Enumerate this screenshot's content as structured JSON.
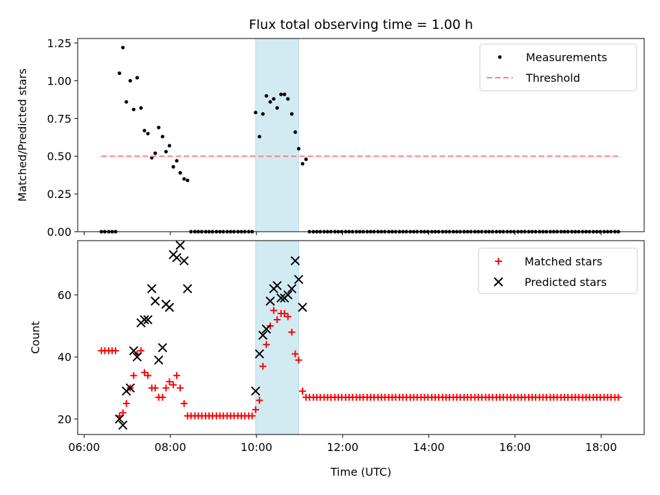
{
  "chart_data": {
    "type": "scatter",
    "title": "Flux total observing time = 1.00 h",
    "xlabel": "Time (UTC)",
    "x_unit": "hours UTC",
    "x_ticks": [
      {
        "value": 6,
        "label": "06:00"
      },
      {
        "value": 8,
        "label": "08:00"
      },
      {
        "value": 10,
        "label": "10:00"
      },
      {
        "value": 12,
        "label": "12:00"
      },
      {
        "value": 14,
        "label": "14:00"
      },
      {
        "value": 16,
        "label": "16:00"
      },
      {
        "value": 18,
        "label": "18:00"
      }
    ],
    "xlim": [
      5.85,
      19.0
    ],
    "shaded_span": {
      "from": 9.98,
      "to": 10.98,
      "color": "#add8e6"
    },
    "panels": [
      {
        "ylabel": "Matched/Predicted stars",
        "ylim": [
          0,
          1.28
        ],
        "y_ticks": [
          {
            "value": 0.0,
            "label": "0.00"
          },
          {
            "value": 0.25,
            "label": "0.25"
          },
          {
            "value": 0.5,
            "label": "0.50"
          },
          {
            "value": 0.75,
            "label": "0.75"
          },
          {
            "value": 1.0,
            "label": "1.00"
          },
          {
            "value": 1.25,
            "label": "1.25"
          }
        ],
        "legend_position": "top-right",
        "series": [
          {
            "name": "Measurements",
            "marker": "dot",
            "color": "#000000",
            "x": [
              6.4,
              6.48,
              6.57,
              6.65,
              6.73,
              6.82,
              6.9,
              6.98,
              7.07,
              7.15,
              7.23,
              7.32,
              7.4,
              7.48,
              7.57,
              7.65,
              7.73,
              7.82,
              7.9,
              7.98,
              8.07,
              8.15,
              8.23,
              8.32,
              8.4,
              8.48,
              8.57,
              8.65,
              8.73,
              8.82,
              8.9,
              8.98,
              9.07,
              9.15,
              9.23,
              9.32,
              9.4,
              9.48,
              9.57,
              9.65,
              9.73,
              9.82,
              9.9,
              9.98,
              10.07,
              10.15,
              10.23,
              10.32,
              10.4,
              10.48,
              10.57,
              10.65,
              10.73,
              10.82,
              10.9,
              10.98,
              11.07,
              11.15,
              11.23,
              11.32,
              11.4,
              11.48,
              11.57,
              11.65,
              11.73,
              11.82,
              11.9,
              11.98,
              12.07,
              12.15,
              12.23,
              12.32,
              12.4,
              12.48,
              12.57,
              12.65,
              12.73,
              12.82,
              12.9,
              12.98,
              13.07,
              13.15,
              13.23,
              13.32,
              13.4,
              13.48,
              13.57,
              13.65,
              13.73,
              13.82,
              13.9,
              13.98,
              14.07,
              14.15,
              14.23,
              14.32,
              14.4,
              14.48,
              14.57,
              14.65,
              14.73,
              14.82,
              14.9,
              14.98,
              15.07,
              15.15,
              15.23,
              15.32,
              15.4,
              15.48,
              15.57,
              15.65,
              15.73,
              15.82,
              15.9,
              15.98,
              16.07,
              16.15,
              16.23,
              16.32,
              16.4,
              16.48,
              16.57,
              16.65,
              16.73,
              16.82,
              16.9,
              16.98,
              17.07,
              17.15,
              17.23,
              17.32,
              17.4,
              17.48,
              17.57,
              17.65,
              17.73,
              17.82,
              17.9,
              17.98,
              18.07,
              18.15,
              18.23,
              18.32,
              18.4
            ],
            "y": [
              0.0,
              0.0,
              0.0,
              0.0,
              0.0,
              1.05,
              1.22,
              0.86,
              1.0,
              0.81,
              1.02,
              0.82,
              0.67,
              0.65,
              0.49,
              0.52,
              0.69,
              0.63,
              0.53,
              0.57,
              0.43,
              0.47,
              0.39,
              0.35,
              0.34,
              0.0,
              0.0,
              0.0,
              0.0,
              0.0,
              0.0,
              0.0,
              0.0,
              0.0,
              0.0,
              0.0,
              0.0,
              0.0,
              0.0,
              0.0,
              0.0,
              0.0,
              0.0,
              0.79,
              0.63,
              0.78,
              0.9,
              0.86,
              0.88,
              0.82,
              0.91,
              0.91,
              0.88,
              0.78,
              0.66,
              0.55,
              0.45,
              0.48,
              0.0,
              0.0,
              0.0,
              0.0,
              0.0,
              0.0,
              0.0,
              0.0,
              0.0,
              0.0,
              0.0,
              0.0,
              0.0,
              0.0,
              0.0,
              0.0,
              0.0,
              0.0,
              0.0,
              0.0,
              0.0,
              0.0,
              0.0,
              0.0,
              0.0,
              0.0,
              0.0,
              0.0,
              0.0,
              0.0,
              0.0,
              0.0,
              0.0,
              0.0,
              0.0,
              0.0,
              0.0,
              0.0,
              0.0,
              0.0,
              0.0,
              0.0,
              0.0,
              0.0,
              0.0,
              0.0,
              0.0,
              0.0,
              0.0,
              0.0,
              0.0,
              0.0,
              0.0,
              0.0,
              0.0,
              0.0,
              0.0,
              0.0,
              0.0,
              0.0,
              0.0,
              0.0,
              0.0,
              0.0,
              0.0,
              0.0,
              0.0,
              0.0,
              0.0,
              0.0,
              0.0,
              0.0,
              0.0,
              0.0,
              0.0,
              0.0,
              0.0,
              0.0,
              0.0,
              0.0,
              0.0,
              0.0,
              0.0,
              0.0,
              0.0,
              0.0,
              0.0
            ]
          },
          {
            "name": "Threshold",
            "marker": "dashed-line",
            "color": "#ff7f7f",
            "x": [
              6.4,
              18.4
            ],
            "y": [
              0.5,
              0.5
            ]
          }
        ]
      },
      {
        "ylabel": "Count",
        "ylim": [
          15,
          77.5
        ],
        "y_ticks": [
          {
            "value": 20,
            "label": "20"
          },
          {
            "value": 40,
            "label": "40"
          },
          {
            "value": 60,
            "label": "60"
          }
        ],
        "legend_position": "top-right",
        "series": [
          {
            "name": "Matched stars",
            "marker": "plus",
            "color": "#ff0000",
            "x": [
              6.4,
              6.48,
              6.57,
              6.65,
              6.73,
              6.82,
              6.9,
              6.98,
              7.07,
              7.15,
              7.23,
              7.32,
              7.4,
              7.48,
              7.57,
              7.65,
              7.73,
              7.82,
              7.9,
              7.98,
              8.07,
              8.15,
              8.23,
              8.32,
              8.4,
              8.48,
              8.57,
              8.65,
              8.73,
              8.82,
              8.9,
              8.98,
              9.07,
              9.15,
              9.23,
              9.32,
              9.4,
              9.48,
              9.57,
              9.65,
              9.73,
              9.82,
              9.9,
              9.98,
              10.07,
              10.15,
              10.23,
              10.32,
              10.4,
              10.48,
              10.57,
              10.65,
              10.73,
              10.82,
              10.9,
              10.98,
              11.07,
              11.15,
              11.23,
              11.32,
              11.4,
              11.48,
              11.57,
              11.65,
              11.73,
              11.82,
              11.9,
              11.98,
              12.07,
              12.15,
              12.23,
              12.32,
              12.4,
              12.48,
              12.57,
              12.65,
              12.73,
              12.82,
              12.9,
              12.98,
              13.07,
              13.15,
              13.23,
              13.32,
              13.4,
              13.48,
              13.57,
              13.65,
              13.73,
              13.82,
              13.9,
              13.98,
              14.07,
              14.15,
              14.23,
              14.32,
              14.4,
              14.48,
              14.57,
              14.65,
              14.73,
              14.82,
              14.9,
              14.98,
              15.07,
              15.15,
              15.23,
              15.32,
              15.4,
              15.48,
              15.57,
              15.65,
              15.73,
              15.82,
              15.9,
              15.98,
              16.07,
              16.15,
              16.23,
              16.32,
              16.4,
              16.48,
              16.57,
              16.65,
              16.73,
              16.82,
              16.9,
              16.98,
              17.07,
              17.15,
              17.23,
              17.32,
              17.4,
              17.48,
              17.57,
              17.65,
              17.73,
              17.82,
              17.9,
              17.98,
              18.07,
              18.15,
              18.23,
              18.32,
              18.4
            ],
            "y": [
              42,
              42,
              42,
              42,
              42,
              21,
              22,
              25,
              30,
              34,
              41,
              42,
              35,
              34,
              30,
              30,
              27,
              27,
              30,
              32,
              31,
              34,
              30,
              25,
              21,
              21,
              21,
              21,
              21,
              21,
              21,
              21,
              21,
              21,
              21,
              21,
              21,
              21,
              21,
              21,
              21,
              21,
              21,
              23,
              26,
              37,
              44,
              50,
              55,
              52,
              54,
              54,
              53,
              48,
              41,
              39,
              29,
              27,
              27,
              27,
              27,
              27,
              27,
              27,
              27,
              27,
              27,
              27,
              27,
              27,
              27,
              27,
              27,
              27,
              27,
              27,
              27,
              27,
              27,
              27,
              27,
              27,
              27,
              27,
              27,
              27,
              27,
              27,
              27,
              27,
              27,
              27,
              27,
              27,
              27,
              27,
              27,
              27,
              27,
              27,
              27,
              27,
              27,
              27,
              27,
              27,
              27,
              27,
              27,
              27,
              27,
              27,
              27,
              27,
              27,
              27,
              27,
              27,
              27,
              27,
              27,
              27,
              27,
              27,
              27,
              27,
              27,
              27,
              27,
              27,
              27,
              27,
              27,
              27,
              27,
              27,
              27,
              27,
              27,
              27,
              27,
              27,
              27,
              27,
              27
            ]
          },
          {
            "name": "Predicted stars",
            "marker": "x",
            "color": "#000000",
            "x": [
              6.82,
              6.9,
              6.98,
              7.07,
              7.15,
              7.23,
              7.32,
              7.4,
              7.48,
              7.57,
              7.65,
              7.73,
              7.82,
              7.9,
              7.98,
              8.07,
              8.15,
              8.23,
              8.32,
              8.4,
              8.48,
              9.98,
              10.07,
              10.15,
              10.23,
              10.32,
              10.4,
              10.48,
              10.57,
              10.65,
              10.73,
              10.82,
              10.9,
              10.98,
              11.07,
              11.15
            ],
            "y": [
              20,
              18,
              29,
              30,
              42,
              40,
              51,
              52,
              52,
              62,
              58,
              39,
              43,
              57,
              56,
              73,
              72,
              76,
              71,
              62,
              null,
              29,
              41,
              47,
              49,
              58,
              62,
              63,
              59,
              59,
              60,
              62,
              71,
              65,
              56,
              null
            ]
          }
        ]
      }
    ]
  }
}
